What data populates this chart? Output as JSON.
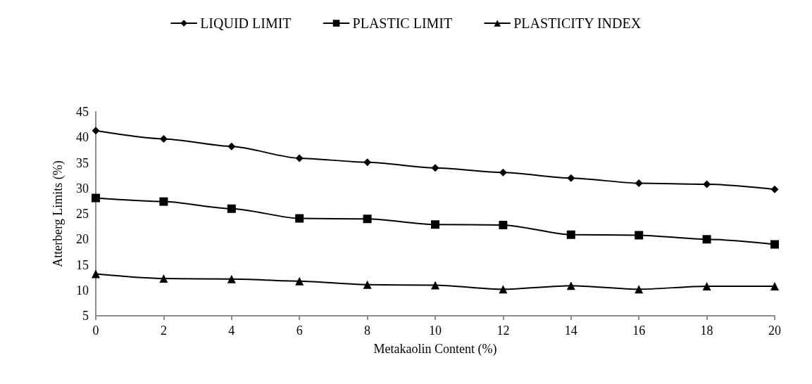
{
  "chart_data": {
    "type": "line",
    "xlabel": "Metakaolin Content (%)",
    "ylabel": "Atterberg Limits (%)",
    "x": [
      0,
      2,
      4,
      6,
      8,
      10,
      12,
      14,
      16,
      18,
      20
    ],
    "series": [
      {
        "name": "LIQUID LIMIT",
        "color": "#000000",
        "marker": "diamond",
        "values": [
          41.3,
          39.7,
          38.2,
          35.9,
          35.1,
          34.0,
          33.1,
          32.0,
          31.0,
          30.8,
          29.8
        ]
      },
      {
        "name": "PLASTIC LIMIT",
        "color": "#000000",
        "marker": "square",
        "values": [
          28.1,
          27.4,
          26.0,
          24.1,
          24.0,
          22.9,
          22.8,
          20.9,
          20.8,
          20.0,
          19.0
        ]
      },
      {
        "name": "PLASTICITY INDEX",
        "color": "#000000",
        "marker": "triangle",
        "values": [
          13.2,
          12.3,
          12.2,
          11.8,
          11.1,
          11.0,
          10.2,
          10.9,
          10.2,
          10.8,
          10.8
        ]
      }
    ],
    "xlim": [
      0,
      20
    ],
    "xticks": [
      0,
      2,
      4,
      6,
      8,
      10,
      12,
      14,
      16,
      18,
      20
    ],
    "ylim": [
      5,
      45
    ],
    "yticks": [
      5,
      10,
      15,
      20,
      25,
      30,
      35,
      40,
      45
    ],
    "grid": false,
    "legend": "top",
    "line_style": "solid"
  }
}
